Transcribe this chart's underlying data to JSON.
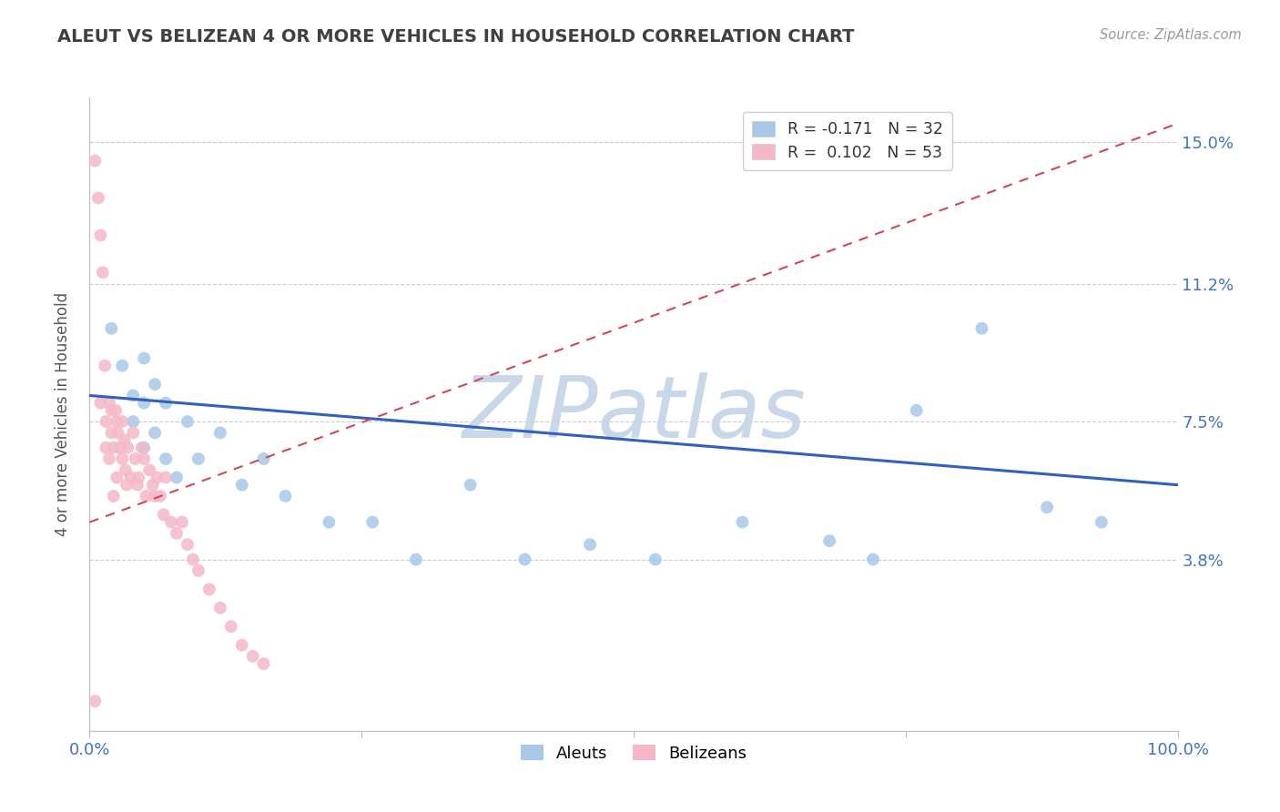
{
  "title": "ALEUT VS BELIZEAN 4 OR MORE VEHICLES IN HOUSEHOLD CORRELATION CHART",
  "source": "Source: ZipAtlas.com",
  "ylabel": "4 or more Vehicles in Household",
  "legend_labels": [
    "Aleuts",
    "Belizeans"
  ],
  "aleut_R": -0.171,
  "aleut_N": 32,
  "belizean_R": 0.102,
  "belizean_N": 53,
  "aleut_color": "#a8c8e8",
  "belizean_color": "#f5b8c8",
  "aleut_line_color": "#3060c0",
  "belizean_line_color": "#d04858",
  "yticks": [
    0.0,
    0.038,
    0.075,
    0.112,
    0.15
  ],
  "ytick_labels": [
    "",
    "3.8%",
    "7.5%",
    "11.2%",
    "15.0%"
  ],
  "xticks": [
    0.0,
    0.25,
    0.5,
    0.75,
    1.0
  ],
  "xtick_labels": [
    "0.0%",
    "",
    "",
    "",
    "100.0%"
  ],
  "xlim": [
    0.0,
    1.0
  ],
  "ylim": [
    -0.008,
    0.162
  ],
  "watermark": "ZIPatlas",
  "watermark_color": "#c8d8e8",
  "tick_label_color": "#4472c4",
  "title_color": "#404040",
  "aleut_x": [
    0.02,
    0.03,
    0.04,
    0.04,
    0.05,
    0.05,
    0.05,
    0.06,
    0.06,
    0.07,
    0.07,
    0.08,
    0.09,
    0.1,
    0.12,
    0.14,
    0.16,
    0.18,
    0.22,
    0.26,
    0.3,
    0.35,
    0.4,
    0.46,
    0.52,
    0.6,
    0.68,
    0.72,
    0.76,
    0.82,
    0.88,
    0.93
  ],
  "aleut_y": [
    0.1,
    0.09,
    0.082,
    0.075,
    0.092,
    0.08,
    0.068,
    0.085,
    0.072,
    0.08,
    0.065,
    0.06,
    0.075,
    0.065,
    0.072,
    0.058,
    0.065,
    0.055,
    0.048,
    0.048,
    0.038,
    0.058,
    0.038,
    0.042,
    0.038,
    0.048,
    0.043,
    0.038,
    0.078,
    0.1,
    0.052,
    0.048
  ],
  "belizean_x": [
    0.005,
    0.005,
    0.008,
    0.01,
    0.01,
    0.012,
    0.014,
    0.015,
    0.015,
    0.018,
    0.018,
    0.02,
    0.02,
    0.022,
    0.022,
    0.024,
    0.025,
    0.025,
    0.026,
    0.028,
    0.03,
    0.03,
    0.032,
    0.033,
    0.034,
    0.035,
    0.038,
    0.04,
    0.042,
    0.044,
    0.045,
    0.048,
    0.05,
    0.052,
    0.055,
    0.058,
    0.06,
    0.062,
    0.065,
    0.068,
    0.07,
    0.075,
    0.08,
    0.085,
    0.09,
    0.095,
    0.1,
    0.11,
    0.12,
    0.13,
    0.14,
    0.15,
    0.16
  ],
  "belizean_y": [
    0.0,
    0.145,
    0.135,
    0.125,
    0.08,
    0.115,
    0.09,
    0.075,
    0.068,
    0.08,
    0.065,
    0.078,
    0.072,
    0.068,
    0.055,
    0.078,
    0.075,
    0.06,
    0.072,
    0.068,
    0.075,
    0.065,
    0.07,
    0.062,
    0.058,
    0.068,
    0.06,
    0.072,
    0.065,
    0.058,
    0.06,
    0.068,
    0.065,
    0.055,
    0.062,
    0.058,
    0.055,
    0.06,
    0.055,
    0.05,
    0.06,
    0.048,
    0.045,
    0.048,
    0.042,
    0.038,
    0.035,
    0.03,
    0.025,
    0.02,
    0.015,
    0.012,
    0.01
  ],
  "aleut_line_x0": 0.0,
  "aleut_line_x1": 1.0,
  "aleut_line_y0": 0.082,
  "aleut_line_y1": 0.058,
  "belizean_line_x0": 0.0,
  "belizean_line_x1": 1.0,
  "belizean_line_y0": 0.048,
  "belizean_line_y1": 0.155
}
